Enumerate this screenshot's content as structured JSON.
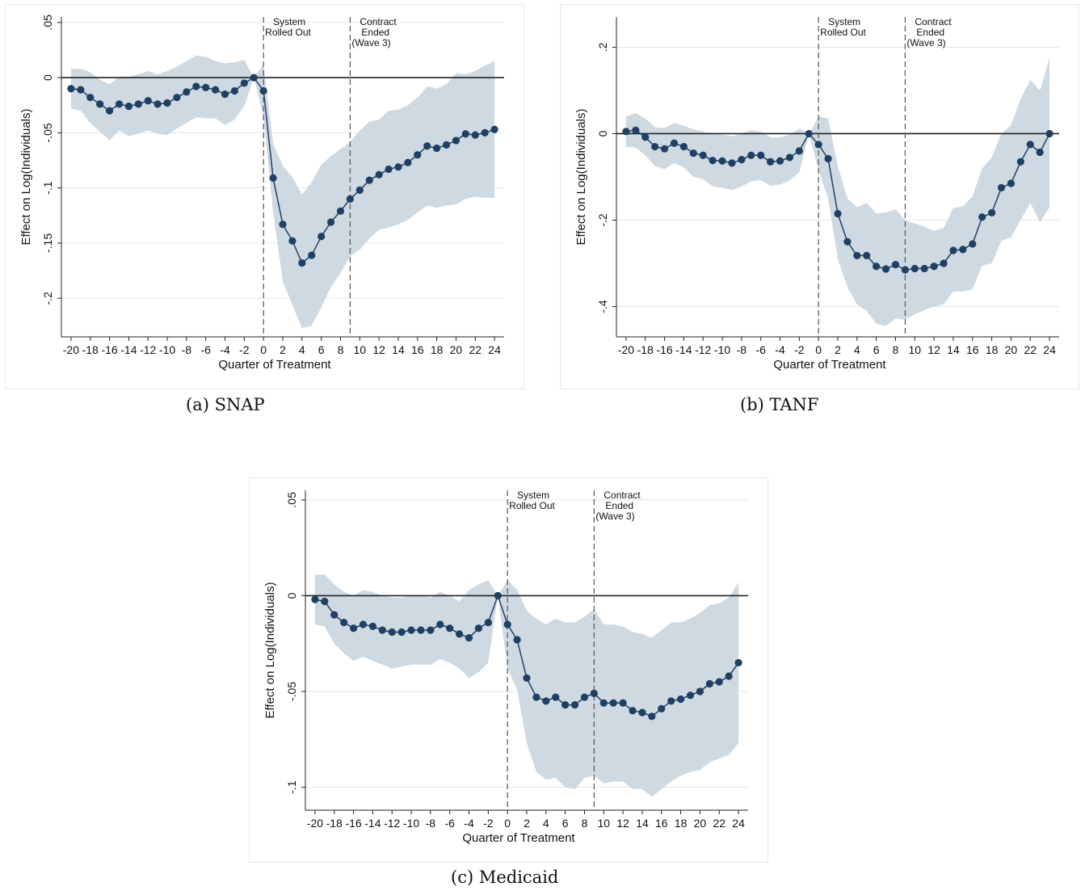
{
  "colors": {
    "band": "#cfd9e2",
    "series": "#1f3f63",
    "frame": "#e8e8e8"
  },
  "captions": [
    "(a) SNAP",
    "(b) TANF",
    "(c) Medicaid"
  ],
  "chart_data": [
    {
      "type": "line",
      "xlabel": "Quarter of Treatment",
      "ylabel": "Effect on Log(Individuals)",
      "xlim": [
        -21,
        25
      ],
      "ylim": [
        -0.235,
        0.055
      ],
      "xticks": [
        -20,
        -18,
        -16,
        -14,
        -12,
        -10,
        -8,
        -6,
        -4,
        -2,
        0,
        2,
        4,
        6,
        8,
        10,
        12,
        14,
        16,
        18,
        20,
        22,
        24
      ],
      "xtick_labels": [
        "-20",
        "-18",
        "-16",
        "-14",
        "-12",
        "-10",
        "-8",
        "-6",
        "-4",
        "-2",
        "0",
        "2",
        "4",
        "6",
        "8",
        "10",
        "12",
        "14",
        "16",
        "18",
        "20",
        "22",
        "24"
      ],
      "yticks": [
        0.05,
        0,
        -0.05,
        -0.1,
        -0.15,
        -0.2
      ],
      "ytick_labels": [
        ".05",
        "0",
        "-.05",
        "-.1",
        "-.15",
        "-.2"
      ],
      "grid": true,
      "annotations": [
        {
          "x": 0,
          "lines": [
            "System",
            "Rolled Out"
          ]
        },
        {
          "x": 9,
          "lines": [
            "Contract",
            "Ended",
            "(Wave 3)"
          ]
        }
      ],
      "x": [
        -20,
        -19,
        -18,
        -17,
        -16,
        -15,
        -14,
        -13,
        -12,
        -11,
        -10,
        -9,
        -8,
        -7,
        -6,
        -5,
        -4,
        -3,
        -2,
        -1,
        0,
        1,
        2,
        3,
        4,
        5,
        6,
        7,
        8,
        9,
        10,
        11,
        12,
        13,
        14,
        15,
        16,
        17,
        18,
        19,
        20,
        21,
        22,
        23,
        24
      ],
      "series": [
        {
          "values": [
            -0.01,
            -0.011,
            -0.018,
            -0.024,
            -0.03,
            -0.024,
            -0.026,
            -0.024,
            -0.021,
            -0.024,
            -0.023,
            -0.018,
            -0.013,
            -0.008,
            -0.009,
            -0.011,
            -0.015,
            -0.012,
            -0.005,
            0.0,
            -0.012,
            -0.091,
            -0.133,
            -0.148,
            -0.168,
            -0.161,
            -0.144,
            -0.131,
            -0.121,
            -0.11,
            -0.102,
            -0.093,
            -0.088,
            -0.083,
            -0.081,
            -0.077,
            -0.07,
            -0.062,
            -0.064,
            -0.061,
            -0.057,
            -0.051,
            -0.052,
            -0.05,
            -0.047
          ],
          "ci_upper": [
            0.008,
            0.008,
            0.005,
            -0.002,
            -0.006,
            0.001,
            0.001,
            0.003,
            0.006,
            0.003,
            0.006,
            0.01,
            0.015,
            0.02,
            0.019,
            0.015,
            0.013,
            0.014,
            0.016,
            0.0,
            0.012,
            -0.06,
            -0.08,
            -0.09,
            -0.106,
            -0.095,
            -0.079,
            -0.071,
            -0.065,
            -0.058,
            -0.048,
            -0.04,
            -0.038,
            -0.03,
            -0.029,
            -0.025,
            -0.018,
            -0.008,
            -0.01,
            -0.006,
            0.004,
            0.003,
            0.006,
            0.011,
            0.015
          ],
          "ci_lower": [
            -0.028,
            -0.03,
            -0.041,
            -0.049,
            -0.057,
            -0.048,
            -0.053,
            -0.051,
            -0.048,
            -0.051,
            -0.052,
            -0.046,
            -0.041,
            -0.036,
            -0.037,
            -0.037,
            -0.043,
            -0.038,
            -0.026,
            0.0,
            -0.036,
            -0.122,
            -0.185,
            -0.206,
            -0.227,
            -0.225,
            -0.208,
            -0.19,
            -0.177,
            -0.162,
            -0.156,
            -0.146,
            -0.138,
            -0.136,
            -0.133,
            -0.129,
            -0.122,
            -0.116,
            -0.118,
            -0.116,
            -0.115,
            -0.11,
            -0.108,
            -0.109,
            -0.109
          ]
        }
      ]
    },
    {
      "type": "line",
      "xlabel": "Quarter of Treatment",
      "ylabel": "Effect on Log(Individuals)",
      "xlim": [
        -21,
        25
      ],
      "ylim": [
        -0.47,
        0.27
      ],
      "xticks": [
        -20,
        -18,
        -16,
        -14,
        -12,
        -10,
        -8,
        -6,
        -4,
        -2,
        0,
        2,
        4,
        6,
        8,
        10,
        12,
        14,
        16,
        18,
        20,
        22,
        24
      ],
      "xtick_labels": [
        "-20",
        "-18",
        "-16",
        "-14",
        "-12",
        "-10",
        "-8",
        "-6",
        "-4",
        "-2",
        "0",
        "2",
        "4",
        "6",
        "8",
        "10",
        "12",
        "14",
        "16",
        "18",
        "20",
        "22",
        "24"
      ],
      "yticks": [
        0.2,
        0,
        -0.2,
        -0.4
      ],
      "ytick_labels": [
        ".2",
        "0",
        "-.2",
        "-.4"
      ],
      "grid": true,
      "annotations": [
        {
          "x": 0,
          "lines": [
            "System",
            "Rolled Out"
          ]
        },
        {
          "x": 9,
          "lines": [
            "Contract",
            "Ended",
            "(Wave 3)"
          ]
        }
      ],
      "x": [
        -20,
        -19,
        -18,
        -17,
        -16,
        -15,
        -14,
        -13,
        -12,
        -11,
        -10,
        -9,
        -8,
        -7,
        -6,
        -5,
        -4,
        -3,
        -2,
        -1,
        0,
        1,
        2,
        3,
        4,
        5,
        6,
        7,
        8,
        9,
        10,
        11,
        12,
        13,
        14,
        15,
        16,
        17,
        18,
        19,
        20,
        21,
        22,
        23,
        24
      ],
      "series": [
        {
          "values": [
            0.005,
            0.008,
            -0.008,
            -0.03,
            -0.035,
            -0.022,
            -0.03,
            -0.045,
            -0.05,
            -0.062,
            -0.063,
            -0.068,
            -0.06,
            -0.05,
            -0.05,
            -0.065,
            -0.063,
            -0.055,
            -0.04,
            0.0,
            -0.025,
            -0.058,
            -0.185,
            -0.25,
            -0.282,
            -0.282,
            -0.307,
            -0.313,
            -0.303,
            -0.315,
            -0.312,
            -0.312,
            -0.307,
            -0.3,
            -0.27,
            -0.268,
            -0.255,
            -0.193,
            -0.183,
            -0.125,
            -0.115,
            -0.065,
            -0.025,
            -0.043,
            0.0
          ],
          "ci_upper": [
            0.04,
            0.048,
            0.035,
            0.015,
            0.013,
            0.025,
            0.018,
            0.01,
            0.005,
            0.0,
            -0.002,
            -0.006,
            0.0,
            0.008,
            0.005,
            -0.008,
            -0.008,
            -0.002,
            0.012,
            0.0,
            0.04,
            0.035,
            -0.075,
            -0.15,
            -0.17,
            -0.16,
            -0.185,
            -0.182,
            -0.175,
            -0.2,
            -0.208,
            -0.215,
            -0.225,
            -0.218,
            -0.172,
            -0.168,
            -0.145,
            -0.08,
            -0.055,
            0.0,
            0.02,
            0.08,
            0.125,
            0.1,
            0.175
          ],
          "ci_lower": [
            -0.03,
            -0.032,
            -0.05,
            -0.075,
            -0.082,
            -0.068,
            -0.078,
            -0.1,
            -0.105,
            -0.122,
            -0.125,
            -0.13,
            -0.122,
            -0.11,
            -0.108,
            -0.12,
            -0.118,
            -0.108,
            -0.09,
            0.0,
            -0.085,
            -0.15,
            -0.29,
            -0.355,
            -0.395,
            -0.41,
            -0.44,
            -0.445,
            -0.428,
            -0.43,
            -0.418,
            -0.408,
            -0.4,
            -0.395,
            -0.365,
            -0.365,
            -0.36,
            -0.305,
            -0.3,
            -0.248,
            -0.24,
            -0.2,
            -0.16,
            -0.205,
            -0.17
          ]
        }
      ]
    },
    {
      "type": "line",
      "xlabel": "Quarter of Treatment",
      "ylabel": "Effect on Log(Individuals)",
      "xlim": [
        -21,
        25
      ],
      "ylim": [
        -0.112,
        0.055
      ],
      "xticks": [
        -20,
        -18,
        -16,
        -14,
        -12,
        -10,
        -8,
        -6,
        -4,
        -2,
        0,
        2,
        4,
        6,
        8,
        10,
        12,
        14,
        16,
        18,
        20,
        22,
        24
      ],
      "xtick_labels": [
        "-20",
        "-18",
        "-16",
        "-14",
        "-12",
        "-10",
        "-8",
        "-6",
        "-4",
        "-2",
        "0",
        "2",
        "4",
        "6",
        "8",
        "10",
        "12",
        "14",
        "16",
        "18",
        "20",
        "22",
        "24"
      ],
      "yticks": [
        0.05,
        0,
        -0.05,
        -0.1
      ],
      "ytick_labels": [
        ".05",
        "0",
        "-.05",
        "-.1"
      ],
      "grid": true,
      "annotations": [
        {
          "x": 0,
          "lines": [
            "System",
            "Rolled Out"
          ]
        },
        {
          "x": 9,
          "lines": [
            "Contract",
            "Ended",
            "(Wave 3)"
          ]
        }
      ],
      "x": [
        -20,
        -19,
        -18,
        -17,
        -16,
        -15,
        -14,
        -13,
        -12,
        -11,
        -10,
        -9,
        -8,
        -7,
        -6,
        -5,
        -4,
        -3,
        -2,
        -1,
        0,
        1,
        2,
        3,
        4,
        5,
        6,
        7,
        8,
        9,
        10,
        11,
        12,
        13,
        14,
        15,
        16,
        17,
        18,
        19,
        20,
        21,
        22,
        23,
        24
      ],
      "series": [
        {
          "values": [
            -0.002,
            -0.003,
            -0.01,
            -0.014,
            -0.017,
            -0.015,
            -0.016,
            -0.018,
            -0.019,
            -0.019,
            -0.018,
            -0.018,
            -0.018,
            -0.015,
            -0.017,
            -0.02,
            -0.022,
            -0.017,
            -0.014,
            0.0,
            -0.015,
            -0.023,
            -0.043,
            -0.053,
            -0.055,
            -0.053,
            -0.057,
            -0.057,
            -0.053,
            -0.051,
            -0.056,
            -0.056,
            -0.056,
            -0.06,
            -0.061,
            -0.063,
            -0.059,
            -0.055,
            -0.054,
            -0.052,
            -0.05,
            -0.046,
            -0.045,
            -0.042,
            -0.035
          ],
          "ci_upper": [
            0.011,
            0.011,
            0.006,
            0.002,
            0.0,
            0.003,
            0.002,
            0.0,
            -0.001,
            -0.001,
            0.0,
            0.0,
            -0.001,
            0.002,
            0.0,
            -0.003,
            0.003,
            0.006,
            0.008,
            0.0,
            0.008,
            0.003,
            -0.008,
            -0.012,
            -0.015,
            -0.012,
            -0.014,
            -0.014,
            -0.011,
            -0.007,
            -0.015,
            -0.015,
            -0.016,
            -0.019,
            -0.02,
            -0.022,
            -0.018,
            -0.014,
            -0.014,
            -0.012,
            -0.009,
            -0.005,
            -0.004,
            -0.001,
            0.007
          ],
          "ci_lower": [
            -0.015,
            -0.016,
            -0.025,
            -0.03,
            -0.034,
            -0.032,
            -0.034,
            -0.036,
            -0.038,
            -0.037,
            -0.036,
            -0.036,
            -0.036,
            -0.033,
            -0.035,
            -0.038,
            -0.043,
            -0.04,
            -0.035,
            0.0,
            -0.038,
            -0.049,
            -0.077,
            -0.092,
            -0.096,
            -0.095,
            -0.1,
            -0.101,
            -0.095,
            -0.094,
            -0.098,
            -0.097,
            -0.097,
            -0.101,
            -0.101,
            -0.105,
            -0.101,
            -0.097,
            -0.094,
            -0.092,
            -0.091,
            -0.087,
            -0.085,
            -0.083,
            -0.077
          ]
        }
      ]
    }
  ]
}
